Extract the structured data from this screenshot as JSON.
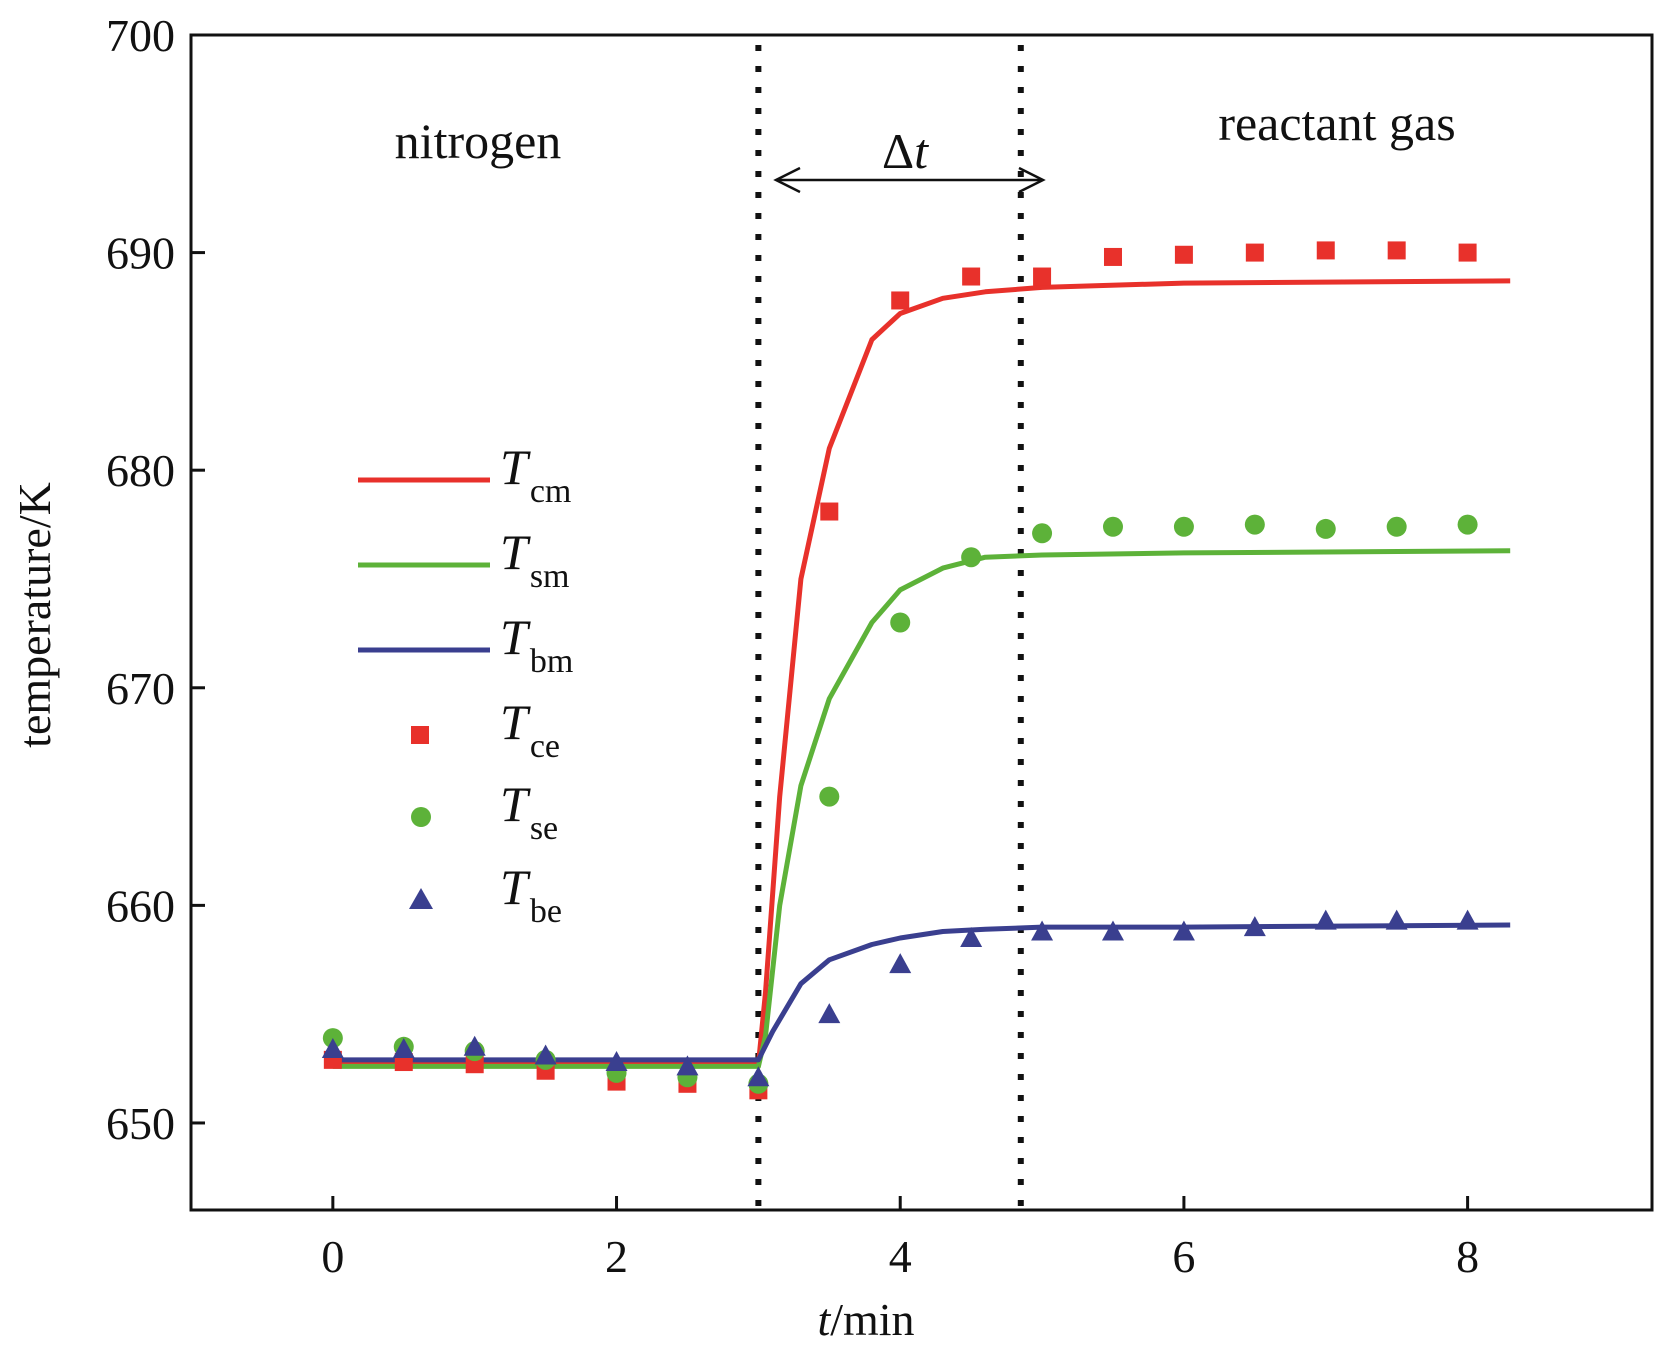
{
  "chart_data": {
    "type": "line",
    "title": "",
    "xlabel": {
      "var": "t",
      "unit": "/min"
    },
    "ylabel": "temperature/K",
    "xlim": [
      -1,
      9.3
    ],
    "ylim": [
      646,
      700
    ],
    "xticks": [
      0,
      2,
      4,
      6,
      8
    ],
    "yticks": [
      650,
      660,
      670,
      680,
      690,
      700
    ],
    "annotations": {
      "left_region": "nitrogen",
      "right_region": "reactant gas",
      "delta": {
        "symbol": "Δ",
        "var": "t",
        "from": 3.0,
        "to": 4.85
      }
    },
    "vlines": [
      3.0,
      4.85
    ],
    "series": [
      {
        "name": "T_cm",
        "label": "T",
        "sub": "cm",
        "kind": "line",
        "color": "#e8312b",
        "x": [
          0,
          2.9,
          3.0,
          3.05,
          3.15,
          3.3,
          3.5,
          3.8,
          4.0,
          4.3,
          4.6,
          5.0,
          6.0,
          8.3
        ],
        "y": [
          652.7,
          652.7,
          652.7,
          656,
          665,
          675,
          681,
          686,
          687.2,
          687.9,
          688.2,
          688.4,
          688.6,
          688.7
        ]
      },
      {
        "name": "T_sm",
        "label": "T",
        "sub": "sm",
        "kind": "line",
        "color": "#5db239",
        "x": [
          0,
          2.9,
          3.0,
          3.05,
          3.15,
          3.3,
          3.5,
          3.8,
          4.0,
          4.3,
          4.6,
          5.0,
          6.0,
          8.3
        ],
        "y": [
          652.6,
          652.6,
          652.6,
          654,
          660,
          665.5,
          669.5,
          673,
          674.5,
          675.5,
          676,
          676.1,
          676.2,
          676.3
        ]
      },
      {
        "name": "T_bm",
        "label": "T",
        "sub": "bm",
        "kind": "line",
        "color": "#3a3f8f",
        "x": [
          0,
          2.9,
          3.0,
          3.1,
          3.3,
          3.5,
          3.8,
          4.0,
          4.3,
          4.6,
          5.0,
          6.0,
          8.3
        ],
        "y": [
          652.9,
          652.9,
          652.9,
          654.2,
          656.4,
          657.5,
          658.2,
          658.5,
          658.8,
          658.9,
          659,
          659,
          659.1
        ]
      },
      {
        "name": "T_ce",
        "label": "T",
        "sub": "ce",
        "kind": "square",
        "color": "#e8312b",
        "x": [
          0,
          0.5,
          1.0,
          1.5,
          2.0,
          2.5,
          3.0,
          3.5,
          4.0,
          4.5,
          5.0,
          5.5,
          6.0,
          6.5,
          7.0,
          7.5,
          8.0
        ],
        "y": [
          652.9,
          652.8,
          652.7,
          652.4,
          651.9,
          651.8,
          651.5,
          678.1,
          687.8,
          688.9,
          688.9,
          689.8,
          689.9,
          690,
          690.1,
          690.1,
          690
        ]
      },
      {
        "name": "T_se",
        "label": "T",
        "sub": "se",
        "kind": "circle",
        "color": "#5db239",
        "x": [
          0,
          0.5,
          1.0,
          1.5,
          2.0,
          2.5,
          3.0,
          3.5,
          4.0,
          4.5,
          5.0,
          5.5,
          6.0,
          6.5,
          7.0,
          7.5,
          8.0
        ],
        "y": [
          653.9,
          653.5,
          653.3,
          652.9,
          652.3,
          652.1,
          651.8,
          665,
          673,
          676,
          677.1,
          677.4,
          677.4,
          677.5,
          677.3,
          677.4,
          677.5
        ]
      },
      {
        "name": "T_be",
        "label": "T",
        "sub": "be",
        "kind": "triangle",
        "color": "#3a3f8f",
        "x": [
          0,
          0.5,
          1.0,
          1.5,
          2.0,
          2.5,
          3.0,
          3.5,
          4.0,
          4.5,
          5.0,
          5.5,
          6.0,
          6.5,
          7.0,
          7.5,
          8.0
        ],
        "y": [
          653.4,
          653.4,
          653.5,
          653.1,
          652.8,
          652.6,
          652.1,
          655,
          657.3,
          658.5,
          658.8,
          658.8,
          658.8,
          659,
          659.3,
          659.3,
          659.3
        ]
      }
    ]
  }
}
